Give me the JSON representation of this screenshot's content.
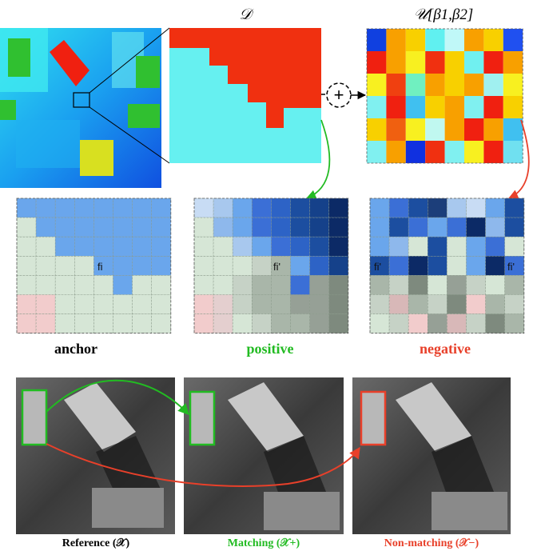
{
  "top_labels": {
    "d_label": "𝒟",
    "u_label": "𝒰[β1,β2]",
    "plus_symbol": "+"
  },
  "grid_labels": {
    "anchor": "anchor",
    "positive": "positive",
    "negative": "negative"
  },
  "feature_labels": {
    "anchor_f": "fi",
    "positive_f": "fi'",
    "negative_f_left": "fi'",
    "negative_f_right": "fi'"
  },
  "photo_labels": {
    "reference": "Reference (𝒳)",
    "matching": "Matching (𝒳+)",
    "non_matching": "Non-matching (𝒳−)"
  },
  "colors": {
    "green": "#22bb22",
    "red": "#e8402a",
    "d_red": "#f03010",
    "d_cyan": "#66f0f0",
    "grid_blue": "#6aa6ec",
    "grid_green": "#d6e6d6",
    "grid_pink": "#f2cccc"
  },
  "u_matrix": [
    [
      "#1040e0",
      "#f8a000",
      "#f8d000",
      "#60f0f0",
      "#c0f8f8",
      "#f8a000",
      "#f8d000",
      "#2050f0"
    ],
    [
      "#f02010",
      "#f8a000",
      "#f8f020",
      "#f03010",
      "#f8d000",
      "#70f0f0",
      "#f02010",
      "#f8a000"
    ],
    [
      "#f8f020",
      "#f04010",
      "#70f0c0",
      "#f8a000",
      "#f8d000",
      "#f8a000",
      "#a0f0f0",
      "#f8f020"
    ],
    [
      "#80f0f0",
      "#f02010",
      "#40c0f0",
      "#f8d000",
      "#f8a000",
      "#80f0f0",
      "#f02010",
      "#f8d000"
    ],
    [
      "#f8d000",
      "#f06010",
      "#f8f020",
      "#c0f8f0",
      "#f8a000",
      "#f02010",
      "#f8a000",
      "#40c0f0"
    ],
    [
      "#80f0f0",
      "#f8a000",
      "#1030e0",
      "#f03010",
      "#80f0f0",
      "#f8f020",
      "#f02010",
      "#70e0f0"
    ]
  ],
  "negative_matrix": [
    [
      "#6aa6ec",
      "#3b6fd6",
      "#1c4ea0",
      "#1c3e7a",
      "#a8c8ee",
      "#c8dcf4",
      "#6aa6ec",
      "#1c4ea0"
    ],
    [
      "#6aa6ec",
      "#1c4ea0",
      "#3b6fd6",
      "#6aa6ec",
      "#3b6fd6",
      "#0c2a66",
      "#8eb8ec",
      "#1c4ea0"
    ],
    [
      "#6aa6ec",
      "#8eb8ec",
      "#d6e6d6",
      "#1c4ea0",
      "#d6e6d6",
      "#6aa6ec",
      "#3b6fd6",
      "#d6e6d6"
    ],
    [
      "#1c4ea0",
      "#3b6fd6",
      "#0c2a66",
      "#1c4ea0",
      "#d6e6d6",
      "#6aa6ec",
      "#0c2a66",
      "#3b6fd6"
    ],
    [
      "#a9b6a9",
      "#c6d2c6",
      "#7e8a7e",
      "#d6e6d6",
      "#96a096",
      "#c6d2c6",
      "#d6e6d6",
      "#a9b6a9"
    ],
    [
      "#c6d2c6",
      "#d8b8b8",
      "#a9b6a9",
      "#c6d2c6",
      "#7e8a7e",
      "#f2cccc",
      "#a9b6a9",
      "#c6d2c6"
    ],
    [
      "#d6e6d6",
      "#c6d2c6",
      "#f2cccc",
      "#96a096",
      "#d8b8b8",
      "#c6d2c6",
      "#7e8a7e",
      "#a9b6a9"
    ]
  ],
  "positive_matrix": [
    [
      "#c8dcf4",
      "#a8c8ee",
      "#6aa6ec",
      "#3b6fd6",
      "#2d63c6",
      "#1c4ea0",
      "#15418a",
      "#0c2a66"
    ],
    [
      "#d6e6d6",
      "#8eb8ec",
      "#6aa6ec",
      "#3b6fd6",
      "#2d63c6",
      "#1c4ea0",
      "#15418a",
      "#0c2a66"
    ],
    [
      "#d6e6d6",
      "#d6e6d6",
      "#a8c8ee",
      "#6aa6ec",
      "#3b6fd6",
      "#2d63c6",
      "#1c4ea0",
      "#0c2a66"
    ],
    [
      "#d6e6d6",
      "#d6e6d6",
      "#d6e6d6",
      "#c6d2c6",
      "#a9b6a9",
      "#6aa6ec",
      "#2d63c6",
      "#15418a"
    ],
    [
      "#d6e6d6",
      "#d6e6d6",
      "#c6d2c6",
      "#a9b6a9",
      "#a9b6a9",
      "#3b6fd6",
      "#96a096",
      "#7e8a7e"
    ],
    [
      "#f2cccc",
      "#e4cfcf",
      "#c6d2c6",
      "#a9b6a9",
      "#a9b6a9",
      "#96a096",
      "#96a096",
      "#7e8a7e"
    ],
    [
      "#f2cccc",
      "#e4cfcf",
      "#d6e6d6",
      "#c6d2c6",
      "#a9b6a9",
      "#a9b6a9",
      "#96a096",
      "#7e8a7e"
    ]
  ],
  "anchor_matrix": [
    [
      "b",
      "b",
      "b",
      "b",
      "b",
      "b",
      "b",
      "b"
    ],
    [
      "g",
      "b",
      "b",
      "b",
      "b",
      "b",
      "b",
      "b"
    ],
    [
      "g",
      "g",
      "b",
      "b",
      "b",
      "b",
      "b",
      "b"
    ],
    [
      "g",
      "g",
      "g",
      "g",
      "b",
      "b",
      "b",
      "b"
    ],
    [
      "g",
      "g",
      "g",
      "g",
      "g",
      "b",
      "g",
      "g"
    ],
    [
      "p",
      "p",
      "g",
      "g",
      "g",
      "g",
      "g",
      "g"
    ],
    [
      "p",
      "p",
      "g",
      "g",
      "g",
      "g",
      "g",
      "g"
    ]
  ]
}
